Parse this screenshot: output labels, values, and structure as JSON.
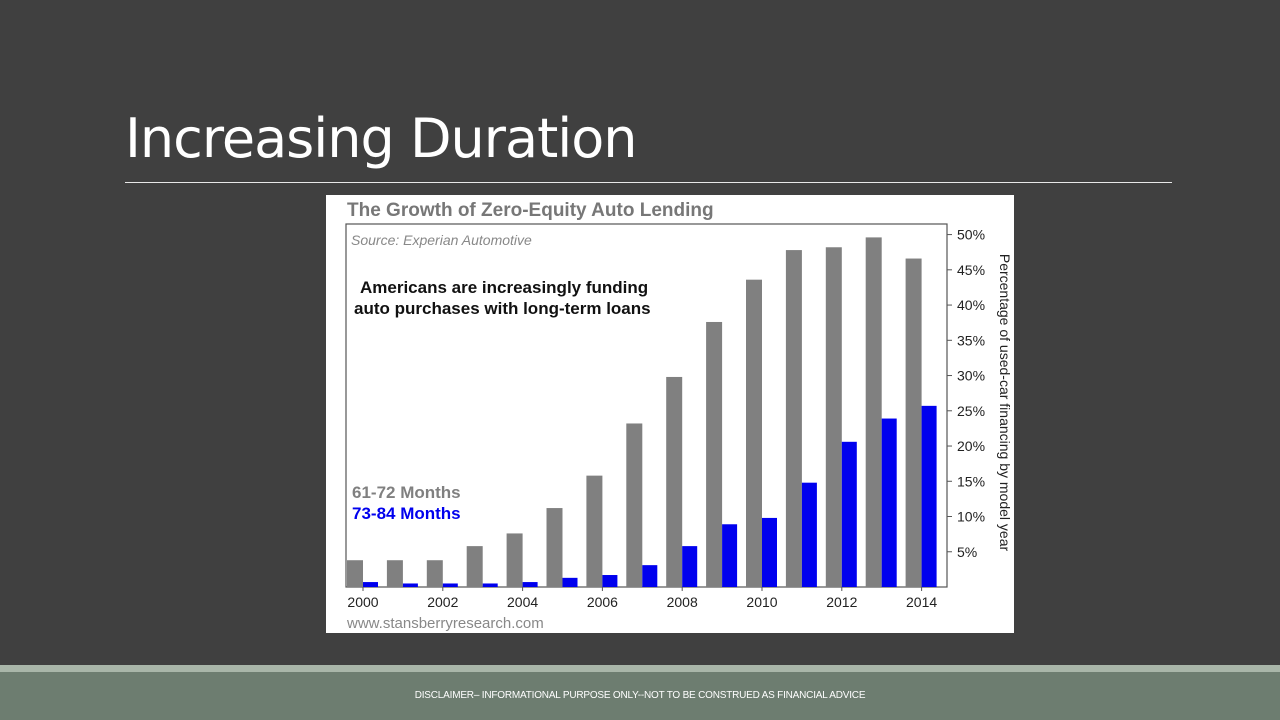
{
  "slide": {
    "title": "Increasing Duration",
    "disclaimer": "DISCLAIMER– INFORMATIONAL PURPOSE ONLY--NOT TO BE CONSTRUED AS FINANCIAL ADVICE"
  },
  "chart_data": {
    "type": "bar",
    "title": "The Growth of Zero-Equity Auto Lending",
    "source": "Source: Experian Automotive",
    "annotation_lines": [
      "Americans are increasingly funding",
      "auto purchases with long-term loans"
    ],
    "ylabel": "Percentage of used-car financing by model year",
    "xlabel": "",
    "footer_url": "www.stansberryresearch.com",
    "categories": [
      "2000",
      "2001",
      "2002",
      "2003",
      "2004",
      "2005",
      "2006",
      "2007",
      "2008",
      "2009",
      "2010",
      "2011",
      "2012",
      "2013",
      "2014"
    ],
    "x_tick_labels": [
      "2000",
      "2002",
      "2004",
      "2006",
      "2008",
      "2010",
      "2012",
      "2014"
    ],
    "y_tick_labels": [
      "5%",
      "10%",
      "15%",
      "20%",
      "25%",
      "30%",
      "35%",
      "40%",
      "45%",
      "50%"
    ],
    "ylim": [
      0,
      51.5
    ],
    "y_axis_position": "right",
    "legend_position": "bottom-left",
    "series": [
      {
        "name": "61-72 Months",
        "color": "#808080",
        "values": [
          3.8,
          3.8,
          3.8,
          5.8,
          7.6,
          11.2,
          15.8,
          23.2,
          29.8,
          37.6,
          43.6,
          47.8,
          48.2,
          49.6,
          46.6
        ]
      },
      {
        "name": "73-84 Months",
        "color": "#0000ee",
        "values": [
          0.7,
          0.5,
          0.5,
          0.5,
          0.7,
          1.3,
          1.7,
          3.1,
          5.8,
          8.9,
          9.8,
          14.8,
          20.6,
          23.9,
          25.7
        ]
      }
    ]
  }
}
